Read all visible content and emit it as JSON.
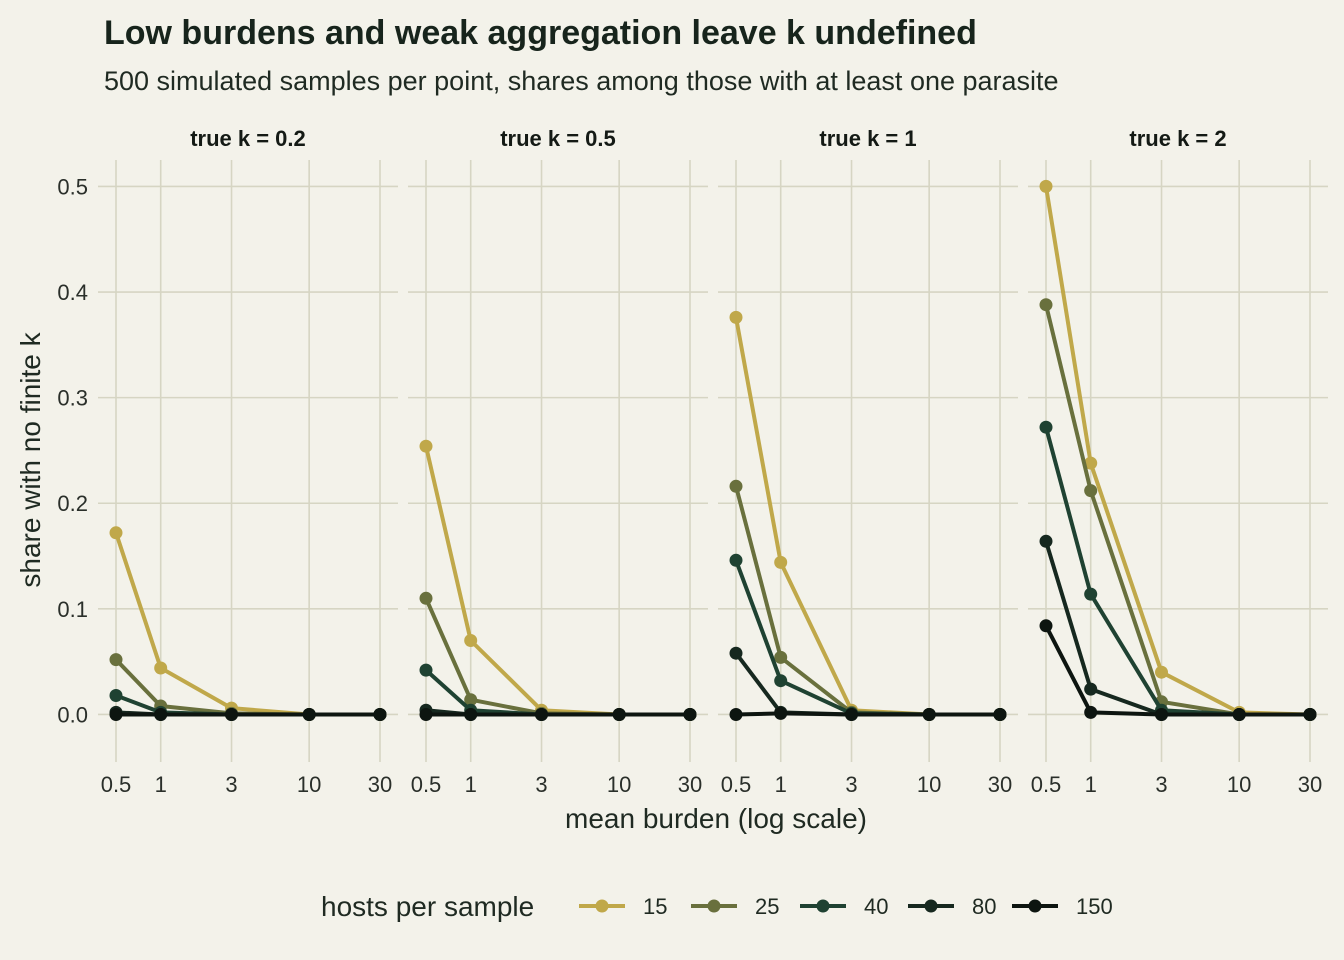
{
  "chart_data": {
    "type": "line",
    "title": "Low burdens and weak aggregation leave k undefined",
    "subtitle": "500 simulated samples per point, shares among those with at least one parasite",
    "xlabel": "mean burden (log scale)",
    "ylabel": "share with no finite k",
    "x_scale": "log",
    "x": [
      0.5,
      1,
      3,
      10,
      30
    ],
    "x_ticks": [
      0.5,
      1,
      3,
      10,
      30
    ],
    "x_tick_labels": [
      "0.5",
      "1",
      "3",
      "10",
      "30"
    ],
    "ylim": [
      -0.045,
      0.525
    ],
    "y_ticks": [
      0.0,
      0.1,
      0.2,
      0.3,
      0.4,
      0.5
    ],
    "y_tick_labels": [
      "0.0",
      "0.1",
      "0.2",
      "0.3",
      "0.4",
      "0.5"
    ],
    "grid": true,
    "legend": {
      "title": "hosts per sample",
      "position": "bottom",
      "entries": [
        "15",
        "25",
        "40",
        "80",
        "150"
      ]
    },
    "series_colors": {
      "15": "#c0a84a",
      "25": "#69703d",
      "40": "#1f4232",
      "80": "#16281f",
      "150": "#0d1510"
    },
    "panels": [
      {
        "label": "true k = 0.2",
        "series": [
          {
            "name": "15",
            "values": [
              0.172,
              0.044,
              0.006,
              0.0,
              0.0
            ]
          },
          {
            "name": "25",
            "values": [
              0.052,
              0.008,
              0.001,
              0.0,
              0.0
            ]
          },
          {
            "name": "40",
            "values": [
              0.018,
              0.002,
              0.0,
              0.0,
              0.0
            ]
          },
          {
            "name": "80",
            "values": [
              0.002,
              0.0,
              0.0,
              0.0,
              0.0
            ]
          },
          {
            "name": "150",
            "values": [
              0.0,
              0.0,
              0.0,
              0.0,
              0.0
            ]
          }
        ]
      },
      {
        "label": "true k = 0.5",
        "series": [
          {
            "name": "15",
            "values": [
              0.254,
              0.07,
              0.004,
              0.0,
              0.0
            ]
          },
          {
            "name": "25",
            "values": [
              0.11,
              0.014,
              0.001,
              0.0,
              0.0
            ]
          },
          {
            "name": "40",
            "values": [
              0.042,
              0.004,
              0.0,
              0.0,
              0.0
            ]
          },
          {
            "name": "80",
            "values": [
              0.004,
              0.0,
              0.0,
              0.0,
              0.0
            ]
          },
          {
            "name": "150",
            "values": [
              0.0,
              0.0,
              0.0,
              0.0,
              0.0
            ]
          }
        ]
      },
      {
        "label": "true k = 1",
        "series": [
          {
            "name": "15",
            "values": [
              0.376,
              0.144,
              0.004,
              0.0,
              0.0
            ]
          },
          {
            "name": "25",
            "values": [
              0.216,
              0.054,
              0.002,
              0.0,
              0.0
            ]
          },
          {
            "name": "40",
            "values": [
              0.146,
              0.032,
              0.001,
              0.0,
              0.0
            ]
          },
          {
            "name": "80",
            "values": [
              0.058,
              0.002,
              0.0,
              0.0,
              0.0
            ]
          },
          {
            "name": "150",
            "values": [
              0.0,
              0.001,
              0.0,
              0.0,
              0.0
            ]
          }
        ]
      },
      {
        "label": "true k = 2",
        "series": [
          {
            "name": "15",
            "values": [
              0.5,
              0.238,
              0.04,
              0.002,
              0.0
            ]
          },
          {
            "name": "25",
            "values": [
              0.388,
              0.212,
              0.012,
              0.0,
              0.0
            ]
          },
          {
            "name": "40",
            "values": [
              0.272,
              0.114,
              0.004,
              0.0,
              0.0
            ]
          },
          {
            "name": "80",
            "values": [
              0.164,
              0.024,
              0.0,
              0.0,
              0.0
            ]
          },
          {
            "name": "150",
            "values": [
              0.084,
              0.002,
              0.0,
              0.0,
              0.0
            ]
          }
        ]
      }
    ]
  }
}
